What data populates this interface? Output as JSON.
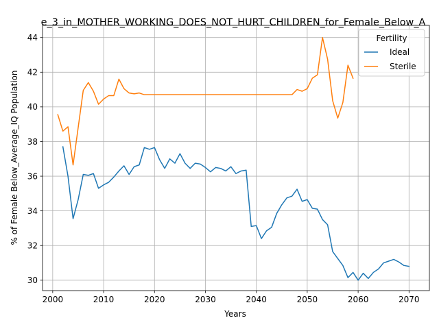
{
  "chart_data": {
    "type": "line",
    "title": "e_3_in_MOTHER_WORKING_DOES_NOT_HURT_CHILDREN_for_Female_Below_A",
    "xlabel": "Years",
    "ylabel": "% of Female Below_Average_IQ Population",
    "xlim": [
      1998,
      2074
    ],
    "ylim": [
      29.4,
      44.7
    ],
    "xticks": [
      2000,
      2010,
      2020,
      2030,
      2040,
      2050,
      2060,
      2070
    ],
    "yticks": [
      30,
      32,
      34,
      36,
      38,
      40,
      42,
      44
    ],
    "grid": true,
    "legend": {
      "title": "Fertility",
      "position": "top-right"
    },
    "series": [
      {
        "name": "Ideal",
        "color": "#1f77b4",
        "x": [
          2002,
          2003,
          2004,
          2005,
          2006,
          2007,
          2008,
          2009,
          2010,
          2011,
          2012,
          2013,
          2014,
          2015,
          2016,
          2017,
          2018,
          2019,
          2020,
          2021,
          2022,
          2023,
          2024,
          2025,
          2026,
          2027,
          2028,
          2029,
          2030,
          2031,
          2032,
          2033,
          2034,
          2035,
          2036,
          2037,
          2038,
          2039,
          2040,
          2041,
          2042,
          2043,
          2044,
          2045,
          2046,
          2047,
          2048,
          2049,
          2050,
          2051,
          2052,
          2053,
          2054,
          2055,
          2056,
          2057,
          2058,
          2059,
          2060,
          2061,
          2062,
          2063,
          2064,
          2065,
          2066,
          2067,
          2068,
          2069,
          2070
        ],
        "values": [
          37.7,
          36.0,
          33.55,
          34.65,
          36.1,
          36.05,
          36.15,
          35.3,
          35.5,
          35.65,
          35.95,
          36.3,
          36.6,
          36.1,
          36.55,
          36.65,
          37.65,
          37.55,
          37.65,
          36.95,
          36.45,
          37.0,
          36.75,
          37.3,
          36.75,
          36.45,
          36.75,
          36.7,
          36.5,
          36.25,
          36.5,
          36.45,
          36.3,
          36.55,
          36.15,
          36.3,
          36.35,
          33.1,
          33.15,
          32.4,
          32.85,
          33.05,
          33.85,
          34.35,
          34.75,
          34.85,
          35.25,
          34.55,
          34.65,
          34.15,
          34.1,
          33.5,
          33.2,
          31.65,
          31.25,
          30.85,
          30.15,
          30.45,
          30.0,
          30.4,
          30.1,
          30.45,
          30.65,
          31.0,
          31.1,
          31.2,
          31.05,
          30.85,
          30.8
        ]
      },
      {
        "name": "Sterile",
        "color": "#ff7f0e",
        "x": [
          2001,
          2002,
          2003,
          2004,
          2005,
          2006,
          2007,
          2008,
          2009,
          2010,
          2011,
          2012,
          2013,
          2014,
          2015,
          2016,
          2017,
          2018,
          2019,
          2020,
          2021,
          2022,
          2023,
          2024,
          2025,
          2026,
          2027,
          2028,
          2029,
          2030,
          2031,
          2032,
          2033,
          2034,
          2035,
          2036,
          2037,
          2038,
          2039,
          2040,
          2041,
          2042,
          2043,
          2044,
          2045,
          2046,
          2047,
          2048,
          2049,
          2050,
          2051,
          2052,
          2053,
          2054,
          2055,
          2056,
          2057,
          2058,
          2059
        ],
        "values": [
          39.55,
          38.6,
          38.85,
          36.65,
          38.8,
          40.95,
          41.4,
          40.9,
          40.15,
          40.45,
          40.65,
          40.65,
          41.6,
          41.05,
          40.8,
          40.75,
          40.8,
          40.7,
          40.7,
          40.7,
          40.7,
          40.7,
          40.7,
          40.7,
          40.7,
          40.7,
          40.7,
          40.7,
          40.7,
          40.7,
          40.7,
          40.7,
          40.7,
          40.7,
          40.7,
          40.7,
          40.7,
          40.7,
          40.7,
          40.7,
          40.7,
          40.7,
          40.7,
          40.7,
          40.7,
          40.7,
          40.7,
          41.0,
          40.9,
          41.05,
          41.65,
          41.85,
          44.0,
          42.75,
          40.35,
          39.35,
          40.25,
          42.4,
          41.65
        ]
      }
    ]
  }
}
